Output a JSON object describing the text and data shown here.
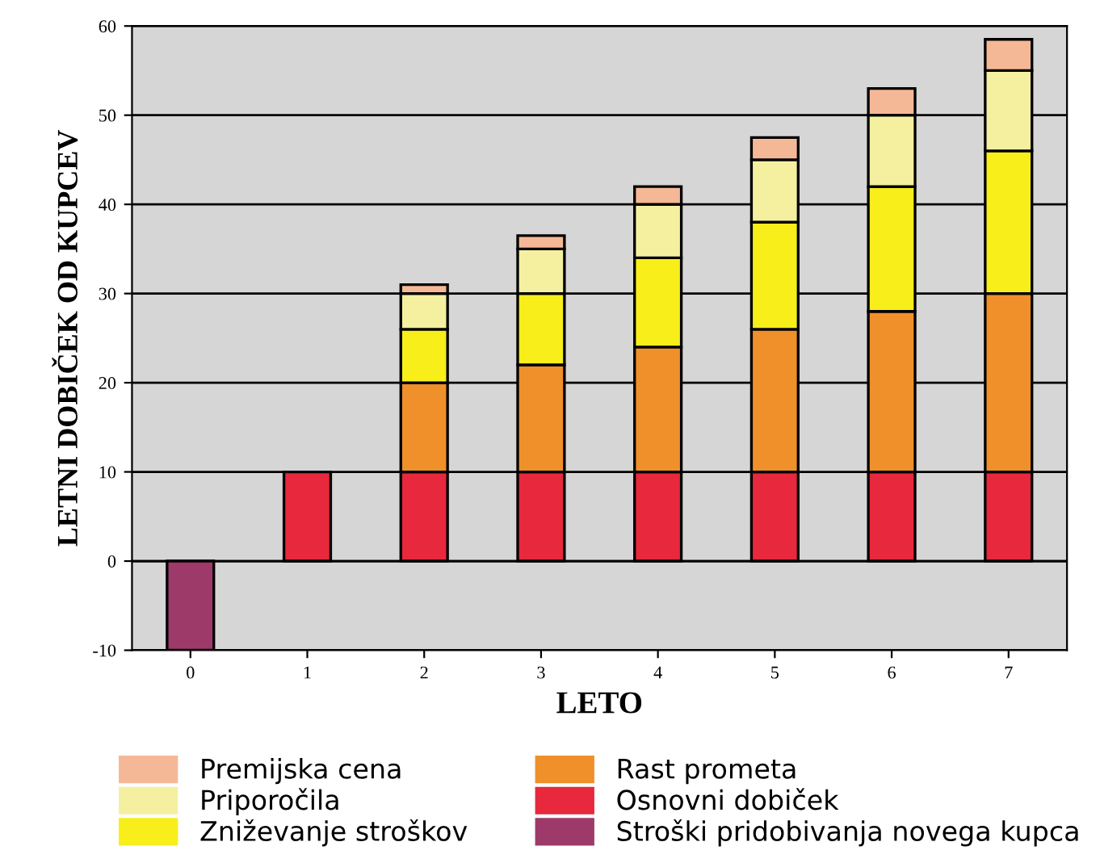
{
  "chart_data": {
    "type": "bar",
    "stacked": true,
    "xlabel": "LETO",
    "ylabel": "LETNI DOBIČEK OD KUPCEV",
    "categories": [
      "0",
      "1",
      "2",
      "3",
      "4",
      "5",
      "6",
      "7"
    ],
    "series": [
      {
        "name": "Stroški pridobivanja novega kupca",
        "color": "#9e3a6a",
        "values": [
          -10,
          null,
          null,
          null,
          null,
          null,
          null,
          null
        ]
      },
      {
        "name": "Osnovni dobiček",
        "color": "#e8283c",
        "values": [
          null,
          10,
          10,
          10,
          10,
          10,
          10,
          10
        ]
      },
      {
        "name": "Rast prometa",
        "color": "#f0902a",
        "values": [
          null,
          null,
          10,
          12,
          14,
          16,
          18,
          20
        ]
      },
      {
        "name": "Zniževanje stroškov",
        "color": "#f7ee1a",
        "values": [
          null,
          null,
          6,
          8,
          10,
          12,
          14,
          16
        ]
      },
      {
        "name": "Priporočila",
        "color": "#f5f0a0",
        "values": [
          null,
          null,
          4,
          5,
          6,
          7,
          8,
          9
        ]
      },
      {
        "name": "Premijska cena",
        "color": "#f5b896",
        "values": [
          null,
          null,
          1,
          1.5,
          2,
          2.5,
          3,
          3.5
        ]
      }
    ],
    "ylim": [
      -10,
      60
    ],
    "yticks": [
      -10,
      0,
      10,
      20,
      30,
      40,
      50,
      60
    ],
    "grid": "y",
    "legend": "bottom"
  }
}
